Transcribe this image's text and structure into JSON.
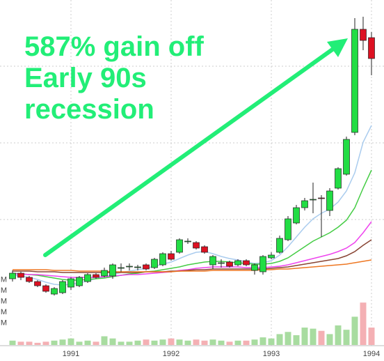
{
  "chart_data": {
    "type": "candlestick",
    "annotation": [
      "587% gain off",
      "Early 90s",
      "recession"
    ],
    "annotation_color": "#22ee77",
    "categories": [
      null,
      null,
      null,
      null,
      null,
      null,
      null,
      "1991",
      null,
      null,
      null,
      null,
      null,
      null,
      null,
      null,
      null,
      null,
      null,
      "1992",
      null,
      null,
      null,
      null,
      null,
      null,
      null,
      null,
      null,
      null,
      null,
      "1993",
      null,
      null,
      null,
      null,
      null,
      null,
      null,
      null,
      null,
      null,
      null,
      "1994"
    ],
    "open": [
      9.0,
      9.8,
      9.2,
      8.6,
      8.0,
      6.8,
      7.0,
      7.8,
      8.0,
      8.6,
      9.6,
      9.4,
      9.4,
      10.5,
      10.7,
      10.6,
      11.0,
      10.6,
      11.0,
      12.6,
      12.8,
      14.3,
      14.2,
      13.6,
      11.0,
      11.2,
      11.4,
      11.0,
      11.6,
      10.2,
      10.0,
      12.0,
      12.8,
      14.6,
      17.0,
      19.2,
      20.3,
      20.6,
      18.8,
      22.0,
      24.0,
      30.0,
      44.8,
      43.6
    ],
    "high": [
      10.2,
      10.0,
      9.4,
      8.8,
      8.2,
      7.8,
      8.8,
      9.2,
      9.4,
      9.8,
      9.8,
      10.6,
      11.2,
      11.2,
      11.2,
      11.0,
      11.2,
      12.0,
      12.8,
      13.0,
      14.8,
      14.8,
      14.4,
      13.8,
      12.4,
      11.8,
      11.6,
      11.8,
      11.8,
      11.2,
      12.4,
      12.8,
      15.2,
      18.0,
      19.6,
      20.6,
      22.8,
      21.0,
      22.0,
      25.0,
      29.4,
      46.4,
      46.6,
      44.4
    ],
    "low": [
      8.6,
      8.8,
      8.4,
      7.8,
      7.0,
      6.6,
      6.8,
      7.4,
      7.8,
      8.4,
      9.0,
      9.2,
      9.0,
      10.0,
      10.2,
      10.2,
      10.2,
      10.4,
      10.8,
      11.6,
      12.6,
      14.0,
      13.2,
      12.6,
      10.4,
      10.6,
      10.6,
      10.8,
      10.8,
      9.6,
      9.6,
      11.8,
      12.6,
      14.4,
      16.8,
      18.8,
      18.4,
      15.0,
      18.0,
      21.8,
      23.8,
      29.6,
      41.8,
      38.2
    ],
    "close": [
      9.8,
      9.2,
      8.6,
      8.0,
      7.2,
      7.6,
      8.6,
      9.0,
      9.2,
      9.6,
      9.2,
      10.2,
      11.0,
      10.6,
      10.8,
      10.7,
      10.4,
      11.8,
      12.6,
      11.8,
      14.6,
      14.4,
      13.4,
      12.8,
      12.2,
      11.3,
      10.8,
      11.6,
      11.0,
      11.0,
      12.2,
      12.4,
      14.8,
      17.6,
      19.2,
      20.2,
      20.4,
      20.5,
      21.6,
      24.8,
      29.0,
      44.8,
      43.2,
      40.6
    ],
    "up_color": "#22dd44",
    "down_color": "#dd1122",
    "ylim": [
      0,
      49
    ],
    "ygrid": [
      17.5,
      28.5,
      39.5
    ],
    "series": [
      {
        "color": "#aaccee",
        "values": [
          9.5,
          9.4,
          9.2,
          8.9,
          8.5,
          8.2,
          8.1,
          8.2,
          8.4,
          8.7,
          9.0,
          9.3,
          9.6,
          9.9,
          10.1,
          10.3,
          10.5,
          10.8,
          11.1,
          11.4,
          11.9,
          12.4,
          12.8,
          12.9,
          12.6,
          12.2,
          11.9,
          11.7,
          11.4,
          11.2,
          11.3,
          11.6,
          12.4,
          13.6,
          15.0,
          16.4,
          17.6,
          18.4,
          19.0,
          20.0,
          21.6,
          24.2,
          28.6,
          31.0
        ]
      },
      {
        "color": "#44cc44",
        "values": [
          9.8,
          9.7,
          9.6,
          9.5,
          9.3,
          9.1,
          8.9,
          8.8,
          8.8,
          8.9,
          9.0,
          9.1,
          9.3,
          9.5,
          9.7,
          9.8,
          10.0,
          10.1,
          10.3,
          10.5,
          10.7,
          11.0,
          11.2,
          11.4,
          11.5,
          11.5,
          11.4,
          11.3,
          11.2,
          11.1,
          11.1,
          11.2,
          11.5,
          12.0,
          12.8,
          13.6,
          14.4,
          15.0,
          15.6,
          16.4,
          17.4,
          19.2,
          22.0,
          24.6
        ]
      },
      {
        "color": "#ee44ee",
        "values": [
          9.7,
          9.7,
          9.6,
          9.6,
          9.5,
          9.4,
          9.3,
          9.2,
          9.2,
          9.2,
          9.2,
          9.3,
          9.4,
          9.5,
          9.6,
          9.6,
          9.7,
          9.8,
          9.9,
          10.0,
          10.2,
          10.3,
          10.5,
          10.6,
          10.7,
          10.7,
          10.7,
          10.7,
          10.6,
          10.6,
          10.6,
          10.7,
          10.8,
          11.0,
          11.3,
          11.6,
          11.9,
          12.2,
          12.5,
          12.9,
          13.4,
          14.2,
          15.6,
          17.2
        ]
      },
      {
        "color": "#884433",
        "values": [
          10.1,
          10.1,
          10.1,
          10.0,
          10.0,
          10.0,
          9.9,
          9.9,
          9.9,
          9.9,
          9.9,
          9.9,
          9.9,
          9.9,
          9.9,
          9.9,
          10.0,
          10.0,
          10.0,
          10.1,
          10.1,
          10.2,
          10.3,
          10.3,
          10.4,
          10.4,
          10.4,
          10.4,
          10.4,
          10.4,
          10.4,
          10.5,
          10.6,
          10.7,
          10.9,
          11.1,
          11.3,
          11.5,
          11.7,
          11.9,
          12.3,
          12.9,
          13.8,
          14.6
        ]
      },
      {
        "color": "#ee7722",
        "values": [
          10.3,
          10.3,
          10.3,
          10.3,
          10.3,
          10.2,
          10.2,
          10.2,
          10.1,
          10.1,
          10.1,
          10.1,
          10.0,
          10.0,
          10.0,
          10.0,
          10.0,
          10.0,
          10.0,
          10.0,
          10.1,
          10.1,
          10.1,
          10.1,
          10.2,
          10.2,
          10.2,
          10.2,
          10.2,
          10.2,
          10.3,
          10.3,
          10.4,
          10.4,
          10.5,
          10.6,
          10.7,
          10.8,
          10.9,
          11.0,
          11.1,
          11.3,
          11.5,
          11.7
        ]
      }
    ],
    "volume": {
      "values": [
        0.4,
        0.3,
        0.3,
        0.2,
        0.3,
        0.4,
        0.5,
        0.6,
        0.3,
        0.4,
        0.3,
        0.8,
        0.6,
        0.3,
        0.3,
        0.4,
        0.5,
        0.4,
        0.5,
        0.6,
        0.5,
        0.4,
        0.5,
        0.4,
        0.5,
        0.4,
        0.3,
        0.4,
        0.4,
        0.5,
        0.7,
        0.6,
        1.0,
        1.2,
        0.9,
        1.6,
        1.5,
        1.3,
        1.0,
        1.8,
        1.4,
        2.6,
        3.9,
        1.6
      ],
      "ylim": [
        0,
        6
      ],
      "yticks": [
        {
          "value": 2,
          "label": "M"
        },
        {
          "value": 3,
          "label": "M"
        },
        {
          "value": 4,
          "label": "M"
        },
        {
          "value": 5,
          "label": "M"
        },
        {
          "value": 6,
          "label": "M"
        }
      ],
      "up_color": "#a8dca0",
      "down_color": "#f4b0b4"
    }
  }
}
